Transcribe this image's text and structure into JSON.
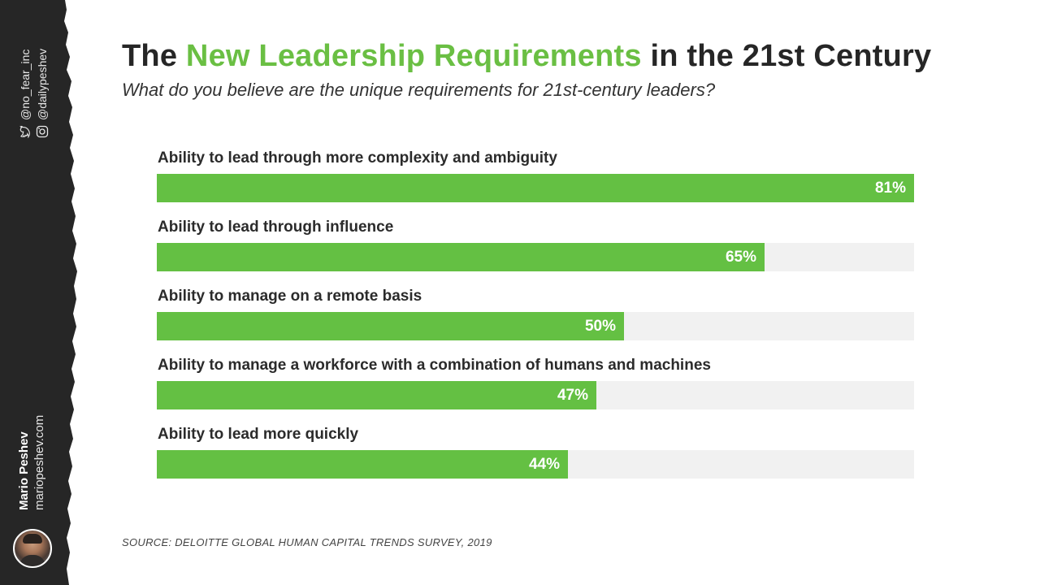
{
  "title": {
    "before": "The ",
    "highlight": "New Leadership Requirements",
    "after": " in the 21st Century"
  },
  "subtitle": "What do you believe are the unique requirements for 21st-century leaders?",
  "sidebar": {
    "twitter": "@no_fear_inc",
    "instagram": "@dailypeshev",
    "author_name": "Mario Peshev",
    "author_site": "mariopeshev.com"
  },
  "colors": {
    "accent": "#64c043",
    "track": "#f1f1f1",
    "sidebar": "#262626"
  },
  "chart_data": {
    "type": "bar",
    "orientation": "horizontal",
    "categories": [
      "Ability to lead through more complexity and ambiguity",
      "Ability to lead through influence",
      "Ability to manage on a remote basis",
      "Ability to manage a workforce with a combination of humans and machines",
      "Ability to lead more quickly"
    ],
    "values": [
      81,
      65,
      50,
      47,
      44
    ],
    "labels": [
      "81%",
      "65%",
      "50%",
      "47%",
      "44%"
    ],
    "xlim": [
      0,
      81
    ],
    "grid": false,
    "legend": "none"
  },
  "source": "SOURCE: DELOITTE GLOBAL HUMAN CAPITAL TRENDS SURVEY, 2019"
}
